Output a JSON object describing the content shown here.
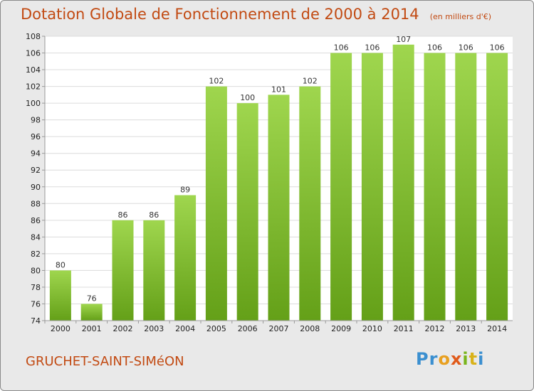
{
  "title": "Dotation Globale de Fonctionnement de 2000 à 2014",
  "subtitle": "(en milliers d'€)",
  "commune": "GRUCHET-SAINT-SIMéON",
  "logo": [
    "Pr",
    "o",
    "x",
    "i",
    "t",
    "i"
  ],
  "colors": {
    "bar_top": "#9fd64e",
    "bar_bottom": "#64a018",
    "title": "#c24a12",
    "background": "#e9e9e9",
    "plot": "#ffffff"
  },
  "chart_data": {
    "type": "bar",
    "categories": [
      "2000",
      "2001",
      "2002",
      "2003",
      "2004",
      "2005",
      "2006",
      "2007",
      "2008",
      "2009",
      "2010",
      "2011",
      "2012",
      "2013",
      "2014"
    ],
    "values": [
      80,
      76,
      86,
      86,
      89,
      102,
      100,
      101,
      102,
      106,
      106,
      107,
      106,
      106,
      106
    ],
    "title": "Dotation Globale de Fonctionnement de 2000 à 2014",
    "subtitle": "(en milliers d'€)",
    "ylim": [
      74,
      108
    ],
    "yticks": [
      74,
      76,
      78,
      80,
      82,
      84,
      86,
      88,
      90,
      92,
      94,
      96,
      98,
      100,
      102,
      104,
      106,
      108
    ],
    "grid": true,
    "legend": "none"
  }
}
